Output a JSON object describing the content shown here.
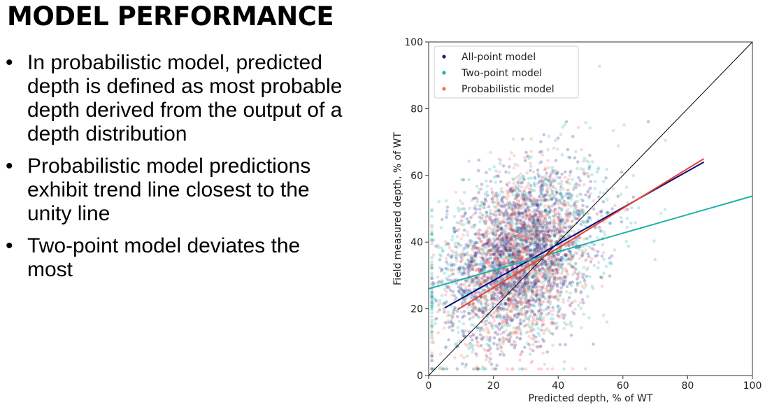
{
  "slide": {
    "title": "MODEL PERFORMANCE",
    "bullets": [
      "In probabilistic model, predicted depth is defined as most probable depth derived from the output of a depth distribution",
      "Probabilistic model predictions exhibit trend line closest to the unity line",
      "Two-point model deviates the most"
    ]
  },
  "chart_data": {
    "type": "scatter",
    "xlabel": "Predicted depth, % of WT",
    "ylabel": "Field measured depth, % of WT",
    "xlim": [
      0,
      100
    ],
    "ylim": [
      0,
      100
    ],
    "xticks": [
      0,
      20,
      40,
      60,
      80,
      100
    ],
    "yticks": [
      0,
      20,
      40,
      60,
      80,
      100
    ],
    "grid": false,
    "legend_position": "top-left",
    "unity_line": {
      "from": [
        0,
        0
      ],
      "to": [
        100,
        100
      ],
      "color": "#000000"
    },
    "series": [
      {
        "name": "All-point model",
        "color": "#1a1a8c",
        "point_opacity": 0.25,
        "cloud": {
          "x_center": 28,
          "x_spread": 11,
          "y_center": 36,
          "y_spread": 12,
          "count": 1500
        },
        "trend": {
          "x": [
            5,
            85
          ],
          "y": [
            20.3,
            64.0
          ],
          "color": "#0a0a7a"
        }
      },
      {
        "name": "Two-point model",
        "color": "#20b2aa",
        "point_opacity": 0.25,
        "cloud": {
          "x_center": 28,
          "x_spread": 15,
          "y_center": 36,
          "y_spread": 14,
          "count": 1100
        },
        "trend": {
          "x": [
            0,
            100
          ],
          "y": [
            26.0,
            53.8
          ],
          "color": "#20b2aa"
        }
      },
      {
        "name": "Probabilistic model",
        "color": "#f26b5b",
        "point_opacity": 0.25,
        "cloud": {
          "x_center": 28,
          "x_spread": 10,
          "y_center": 34,
          "y_spread": 12,
          "count": 1600
        },
        "trend": {
          "x": [
            9,
            85
          ],
          "y": [
            19.8,
            65.0
          ],
          "color": "#e8432f"
        }
      }
    ]
  }
}
